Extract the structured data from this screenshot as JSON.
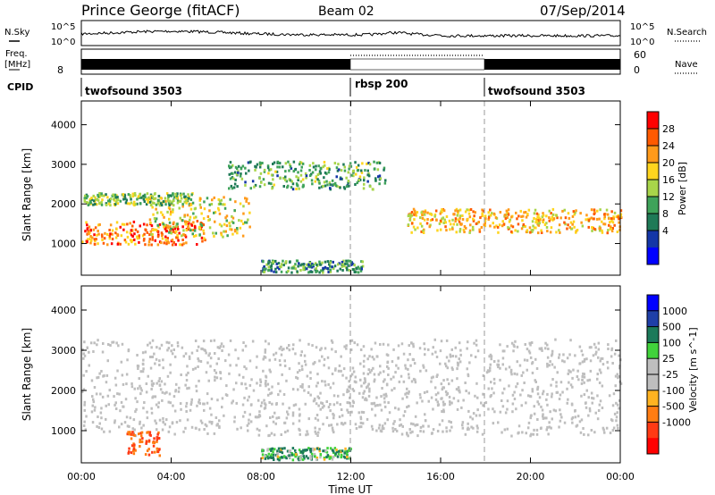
{
  "header": {
    "title": "Prince George (fitACF)",
    "beam": "Beam 02",
    "date": "07/Sep/2014"
  },
  "noise_panel": {
    "left_label": "N.Sky",
    "right_label": "N.Search",
    "left_ticks": [
      "10^5",
      "10^0"
    ],
    "right_ticks": [
      "10^5",
      "10^0"
    ]
  },
  "freq_panel": {
    "left_label_1": "Freq.",
    "left_label_2": "[MHz]",
    "right_label": "Nave",
    "left_ticks": [
      "8"
    ],
    "right_ticks": [
      "60",
      "0"
    ]
  },
  "cpid": {
    "label": "CPID",
    "segments": [
      {
        "name": "twofsound 3503",
        "start": "00:00",
        "end": "12:00"
      },
      {
        "name": "rbsp 200",
        "start": "12:00",
        "end": "18:00"
      },
      {
        "name": "twofsound 3503",
        "start": "18:00",
        "end": "00:00"
      }
    ]
  },
  "x_axis": {
    "label": "Time UT",
    "ticks": [
      "00:00",
      "04:00",
      "08:00",
      "12:00",
      "16:00",
      "20:00",
      "00:00"
    ]
  },
  "colorbars": {
    "power": {
      "title": "Power [dB]",
      "ticks": [
        "28",
        "24",
        "20",
        "16",
        "12",
        "8",
        "4"
      ],
      "colors": [
        "#ff0000",
        "#ff5a00",
        "#ff9a1a",
        "#ffd51e",
        "#a8d54a",
        "#3fa35a",
        "#1f7a57",
        "#1436a7",
        "#0000ff"
      ]
    },
    "velocity": {
      "title": "Velocity [m s^-1]",
      "ticks": [
        "1000",
        "500",
        "100",
        "25",
        "-25",
        "-100",
        "-500",
        "-1000"
      ],
      "colors": [
        "#0000ff",
        "#1f3fa8",
        "#1c7a5a",
        "#41d33b",
        "#bebebe",
        "#bebebe",
        "#ffb321",
        "#ff7d12",
        "#ff3a14",
        "#ff0000"
      ]
    }
  },
  "chart_data": [
    {
      "type": "heatmap",
      "title": "Power",
      "xlabel": "Time UT",
      "ylabel": "Slant Range [km]",
      "x_range_hours": [
        0,
        24
      ],
      "ylim": [
        200,
        4600
      ],
      "y_ticks": [
        1000,
        2000,
        3000,
        4000
      ],
      "colorbar_label": "Power [dB]",
      "colorbar_range": [
        0,
        32
      ],
      "features": [
        {
          "name": "near-range band",
          "t_start": 0.0,
          "t_end": 5.5,
          "range_start_km": 1000,
          "range_end_km": 1600,
          "power_db": 26
        },
        {
          "name": "rising echo",
          "t_start": 3.0,
          "t_end": 7.5,
          "range_start_km": 1200,
          "range_end_km": 2200,
          "power_db": 18
        },
        {
          "name": "far-range band",
          "t_start": 0.0,
          "t_end": 5.0,
          "range_start_km": 2000,
          "range_end_km": 2300,
          "power_db": 14
        },
        {
          "name": "midday arc",
          "t_start": 6.5,
          "t_end": 13.5,
          "range_start_km": 2400,
          "range_end_km": 3100,
          "power_db": 12
        },
        {
          "name": "E-region echoes",
          "t_start": 8.0,
          "t_end": 12.5,
          "range_start_km": 300,
          "range_end_km": 600,
          "power_db": 10
        },
        {
          "name": "evening band",
          "t_start": 14.5,
          "t_end": 24.0,
          "range_start_km": 1300,
          "range_end_km": 1900,
          "power_db": 22
        }
      ]
    },
    {
      "type": "heatmap",
      "title": "Velocity",
      "xlabel": "Time UT",
      "ylabel": "Slant Range [km]",
      "x_range_hours": [
        0,
        24
      ],
      "ylim": [
        200,
        4600
      ],
      "y_ticks": [
        1000,
        2000,
        3000,
        4000
      ],
      "colorbar_label": "Velocity [m s^-1]",
      "colorbar_range": [
        -1000,
        1000
      ],
      "features": [
        {
          "name": "ground scatter",
          "t_start": 0.0,
          "t_end": 24.0,
          "range_start_km": 900,
          "range_end_km": 3300,
          "velocity_ms": 0
        },
        {
          "name": "negative velocity patch",
          "t_start": 2.0,
          "t_end": 3.5,
          "range_start_km": 400,
          "range_end_km": 1000,
          "velocity_ms": -500
        },
        {
          "name": "positive velocity patch",
          "t_start": 8.0,
          "t_end": 12.0,
          "range_start_km": 300,
          "range_end_km": 600,
          "velocity_ms": 100
        }
      ]
    }
  ]
}
